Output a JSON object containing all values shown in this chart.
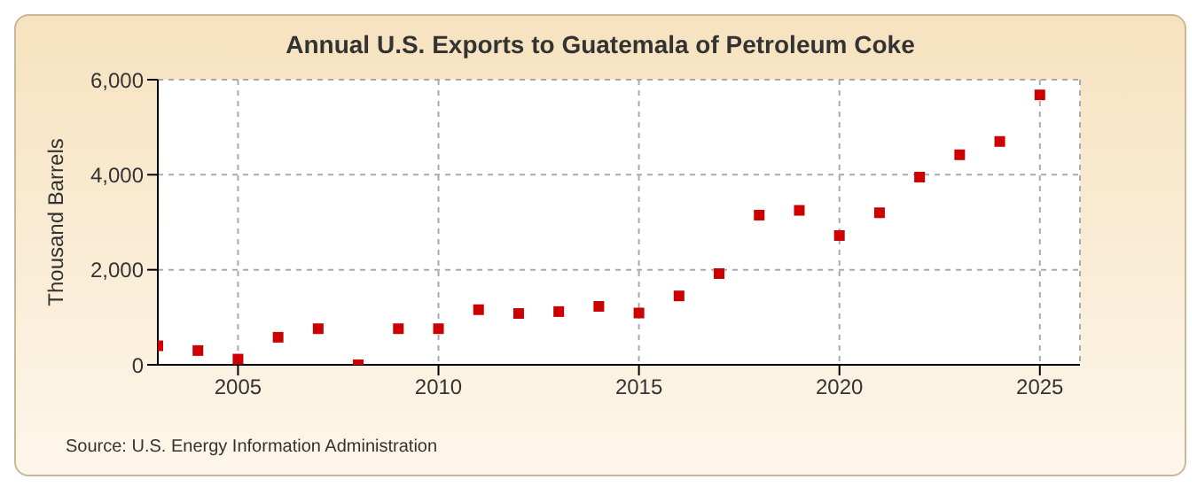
{
  "chart_data": {
    "type": "scatter",
    "title": "Annual U.S. Exports to Guatemala of Petroleum Coke",
    "ylabel": "Thousand Barrels",
    "x": [
      2003,
      2004,
      2005,
      2006,
      2007,
      2008,
      2009,
      2010,
      2011,
      2012,
      2013,
      2014,
      2015,
      2016,
      2017,
      2018,
      2019,
      2020,
      2021,
      2022,
      2023,
      2024,
      2025
    ],
    "series": [
      {
        "color": "#cc0000",
        "values": [
          400,
          300,
          120,
          580,
          760,
          0,
          760,
          760,
          1160,
          1080,
          1120,
          1230,
          1090,
          1450,
          1920,
          3150,
          3250,
          2720,
          3200,
          3950,
          4420,
          4700,
          5680
        ]
      }
    ],
    "xlim": [
      2003,
      2026
    ],
    "xticks": [
      2005,
      2010,
      2015,
      2020,
      2025
    ],
    "ylim": [
      0,
      6000
    ],
    "yticks": [
      {
        "value": 0,
        "label": "0"
      },
      {
        "value": 2000,
        "label": "2,000"
      },
      {
        "value": 4000,
        "label": "4,000"
      },
      {
        "value": 6000,
        "label": "6,000"
      }
    ],
    "grid": true,
    "marker": "square",
    "legend": false,
    "annotations": [
      "Source: U.S. Energy Information Administration"
    ]
  }
}
